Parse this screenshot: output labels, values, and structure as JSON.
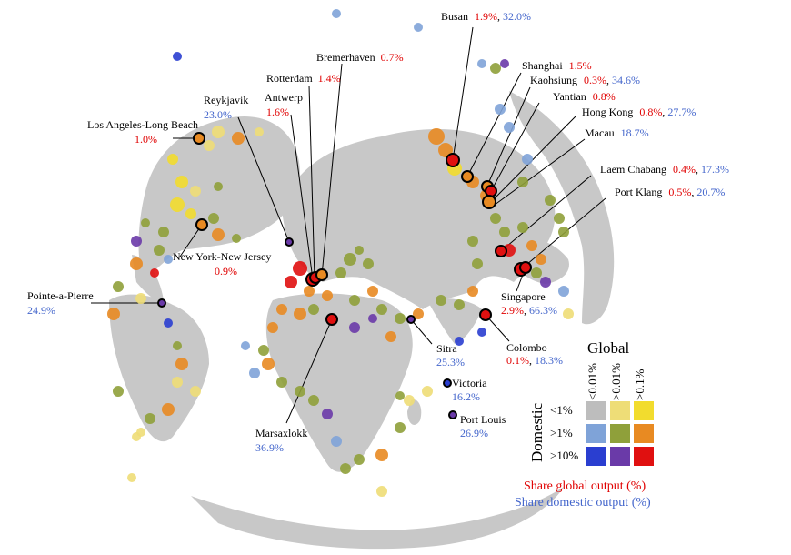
{
  "colors": {
    "land": "#c8c8c8",
    "global_text": "#e00000",
    "domestic_text": "#4466cc",
    "legend_grid": [
      [
        "#bdbdbd",
        "#eedd77",
        "#f2dc2e"
      ],
      [
        "#7fa3d8",
        "#8fa03a",
        "#e88a22"
      ],
      [
        "#2a3ed0",
        "#6a3aa8",
        "#e01010"
      ]
    ]
  },
  "legend": {
    "global_title": "Global",
    "domestic_title": "Domestic",
    "global_cols": [
      "<0.01%",
      ">0.01%",
      ">0.1%"
    ],
    "domestic_rows": [
      "<1%",
      ">1%",
      ">10%"
    ],
    "footer_global": "Share global output (%)",
    "footer_domestic": "Share domestic output (%)"
  },
  "ports": [
    {
      "id": "busan",
      "name": "Busan",
      "global": "1.9%",
      "domestic": "32.0%"
    },
    {
      "id": "shanghai",
      "name": "Shanghai",
      "global": "1.5%",
      "domestic": ""
    },
    {
      "id": "kaohsiung",
      "name": "Kaohsiung",
      "global": "0.3%",
      "domestic": "34.6%"
    },
    {
      "id": "yantian",
      "name": "Yantian",
      "global": "0.8%",
      "domestic": ""
    },
    {
      "id": "hongkong",
      "name": "Hong Kong",
      "global": "0.8%",
      "domestic": "27.7%"
    },
    {
      "id": "macau",
      "name": "Macau",
      "global": "",
      "domestic": "18.7%"
    },
    {
      "id": "laemchabang",
      "name": "Laem Chabang",
      "global": "0.4%",
      "domestic": "17.3%"
    },
    {
      "id": "portklang",
      "name": "Port Klang",
      "global": "0.5%",
      "domestic": "20.7%"
    },
    {
      "id": "singapore",
      "name": "Singapore",
      "global": "2.9%",
      "domestic": "66.3%"
    },
    {
      "id": "colombo",
      "name": "Colombo",
      "global": "0.1%",
      "domestic": "18.3%"
    },
    {
      "id": "sitra",
      "name": "Sitra",
      "global": "",
      "domestic": "25.3%"
    },
    {
      "id": "victoria",
      "name": "Victoria",
      "global": "",
      "domestic": "16.2%"
    },
    {
      "id": "portlouis",
      "name": "Port Louis",
      "global": "",
      "domestic": "26.9%"
    },
    {
      "id": "marsaxlokk",
      "name": "Marsaxlokk",
      "global": "",
      "domestic": "36.9%"
    },
    {
      "id": "pointeapierre",
      "name": "Pointe-a-Pierre",
      "global": "",
      "domestic": "24.9%"
    },
    {
      "id": "newyork",
      "name": "New York-New Jersey",
      "global": "0.9%",
      "domestic": ""
    },
    {
      "id": "losangeles",
      "name": "Los Angeles-Long Beach",
      "global": "1.0%",
      "domestic": ""
    },
    {
      "id": "reykjavik",
      "name": "Reykjavik",
      "global": "",
      "domestic": "23.0%"
    },
    {
      "id": "antwerp",
      "name": "Antwerp",
      "global": "1.6%",
      "domestic": ""
    },
    {
      "id": "rotterdam",
      "name": "Rotterdam",
      "global": "1.4%",
      "domestic": ""
    },
    {
      "id": "bremerhaven",
      "name": "Bremerhaven",
      "global": "0.7%",
      "domestic": ""
    }
  ]
}
